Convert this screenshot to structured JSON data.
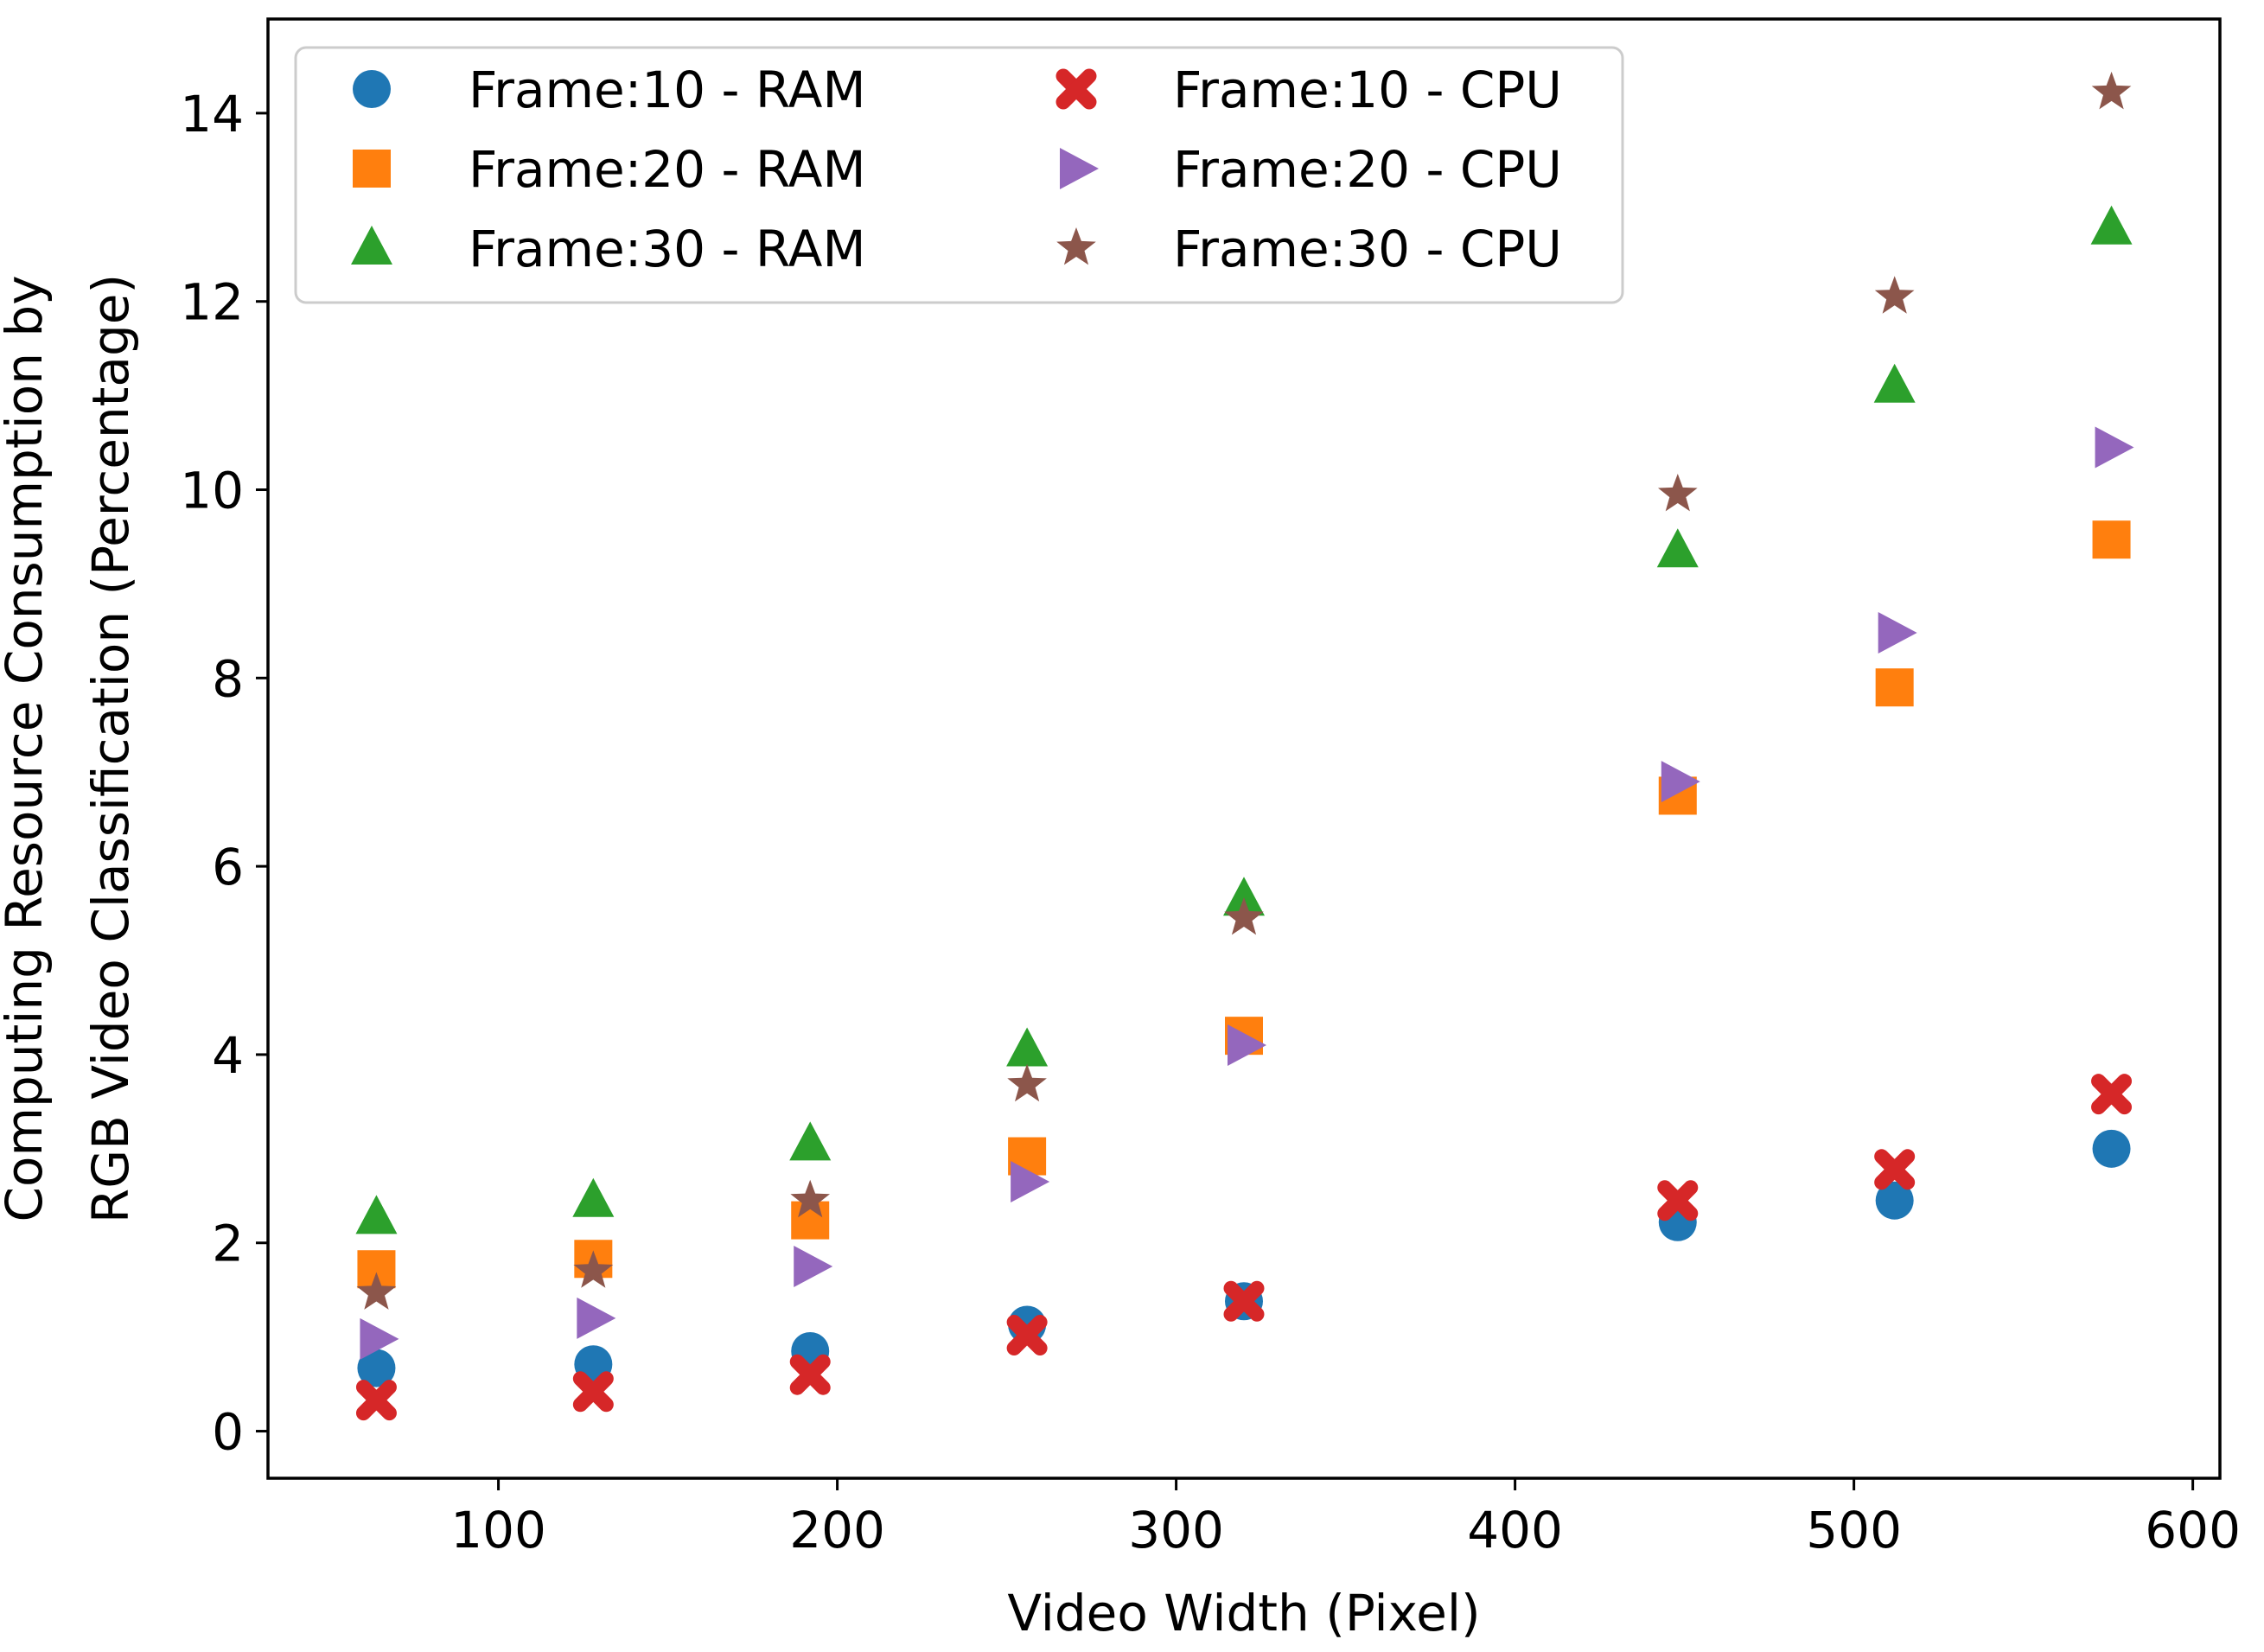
{
  "chart_data": {
    "type": "scatter",
    "title": "",
    "xlabel": "Video Width (Pixel)",
    "ylabel_line1": "Computing Resource Consumption by",
    "ylabel_line2": "RGB Video Classification (Percentage)",
    "xlim": [
      32,
      608
    ],
    "ylim": [
      -0.5,
      15.0
    ],
    "xticks": [
      100,
      200,
      300,
      400,
      500,
      600
    ],
    "yticks": [
      0,
      2,
      4,
      6,
      8,
      10,
      12,
      14
    ],
    "grid": false,
    "legend_position": "top-left",
    "x": [
      64,
      128,
      192,
      256,
      320,
      448,
      512,
      576
    ],
    "series": [
      {
        "name": "Frame:10 - RAM",
        "marker": "circle",
        "color": "#1f77b4",
        "values": [
          0.67,
          0.71,
          0.85,
          1.13,
          1.38,
          2.22,
          2.45,
          3.0
        ]
      },
      {
        "name": "Frame:20 - RAM",
        "marker": "square",
        "color": "#ff7f0e",
        "values": [
          1.72,
          1.83,
          2.24,
          2.92,
          4.2,
          6.75,
          7.9,
          9.47
        ]
      },
      {
        "name": "Frame:30 - RAM",
        "marker": "triangle-up",
        "color": "#2ca02c",
        "values": [
          2.27,
          2.45,
          3.05,
          4.05,
          5.65,
          9.35,
          11.1,
          12.78
        ]
      },
      {
        "name": "Frame:10 - CPU",
        "marker": "x-filled",
        "color": "#d62728",
        "values": [
          0.33,
          0.42,
          0.6,
          1.02,
          1.38,
          2.45,
          2.78,
          3.58
        ]
      },
      {
        "name": "Frame:20 - CPU",
        "marker": "triangle-right",
        "color": "#9467bd",
        "values": [
          0.98,
          1.2,
          1.75,
          2.65,
          4.1,
          6.9,
          8.48,
          10.45
        ]
      },
      {
        "name": "Frame:30 - CPU",
        "marker": "star",
        "color": "#8c564b",
        "values": [
          1.47,
          1.7,
          2.45,
          3.68,
          5.45,
          9.95,
          12.05,
          14.22
        ]
      }
    ]
  }
}
